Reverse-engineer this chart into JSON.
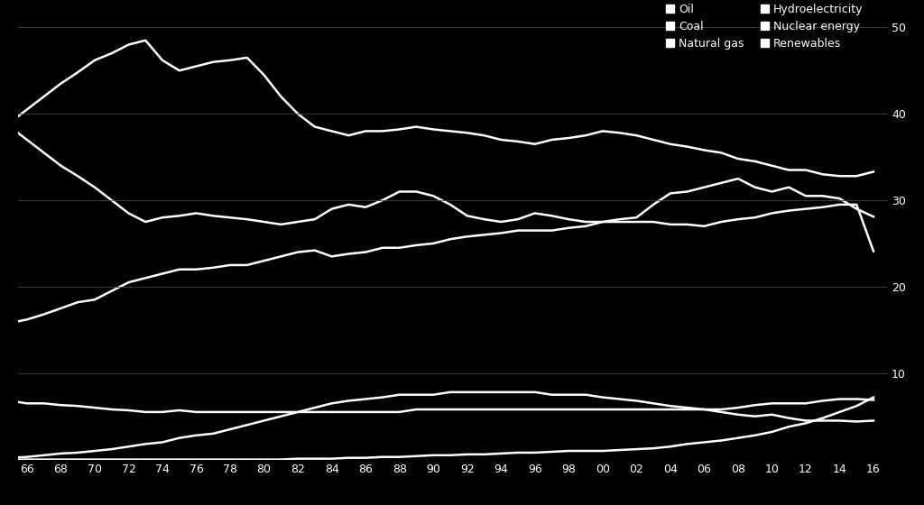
{
  "years": [
    1965,
    1966,
    1967,
    1968,
    1969,
    1970,
    1971,
    1972,
    1973,
    1974,
    1975,
    1976,
    1977,
    1978,
    1979,
    1980,
    1981,
    1982,
    1983,
    1984,
    1985,
    1986,
    1987,
    1988,
    1989,
    1990,
    1991,
    1992,
    1993,
    1994,
    1995,
    1996,
    1997,
    1998,
    1999,
    2000,
    2001,
    2002,
    2003,
    2004,
    2005,
    2006,
    2007,
    2008,
    2009,
    2010,
    2011,
    2012,
    2013,
    2014,
    2015,
    2016
  ],
  "oil": [
    39.0,
    40.5,
    42.0,
    43.5,
    44.8,
    46.2,
    47.0,
    48.0,
    48.5,
    46.2,
    45.0,
    45.5,
    46.0,
    46.2,
    46.5,
    44.5,
    42.0,
    40.0,
    38.5,
    38.0,
    37.5,
    38.0,
    38.0,
    38.2,
    38.5,
    38.2,
    38.0,
    37.8,
    37.5,
    37.0,
    36.8,
    36.5,
    37.0,
    37.2,
    37.5,
    38.0,
    37.8,
    37.5,
    37.0,
    36.5,
    36.2,
    35.8,
    35.5,
    34.8,
    34.5,
    34.0,
    33.5,
    33.5,
    33.0,
    32.8,
    32.8,
    33.3
  ],
  "coal": [
    38.5,
    37.0,
    35.5,
    34.0,
    32.8,
    31.5,
    30.0,
    28.5,
    27.5,
    28.0,
    28.2,
    28.5,
    28.2,
    28.0,
    27.8,
    27.5,
    27.2,
    27.5,
    27.8,
    29.0,
    29.5,
    29.2,
    30.0,
    31.0,
    31.0,
    30.5,
    29.5,
    28.2,
    27.8,
    27.5,
    27.8,
    28.5,
    28.2,
    27.8,
    27.5,
    27.5,
    27.8,
    28.0,
    29.5,
    30.8,
    31.0,
    31.5,
    32.0,
    32.5,
    31.5,
    31.0,
    31.5,
    30.5,
    30.5,
    30.2,
    29.0,
    28.1
  ],
  "natural_gas": [
    15.8,
    16.2,
    16.8,
    17.5,
    18.2,
    18.5,
    19.5,
    20.5,
    21.0,
    21.5,
    22.0,
    22.0,
    22.2,
    22.5,
    22.5,
    23.0,
    23.5,
    24.0,
    24.2,
    23.5,
    23.8,
    24.0,
    24.5,
    24.5,
    24.8,
    25.0,
    25.5,
    25.8,
    26.0,
    26.2,
    26.5,
    26.5,
    26.5,
    26.8,
    27.0,
    27.5,
    27.5,
    27.5,
    27.5,
    27.2,
    27.2,
    27.0,
    27.5,
    27.8,
    28.0,
    28.5,
    28.8,
    29.0,
    29.2,
    29.5,
    29.5,
    24.1
  ],
  "hydroelectricity": [
    6.8,
    6.5,
    6.5,
    6.3,
    6.2,
    6.0,
    5.8,
    5.7,
    5.5,
    5.5,
    5.7,
    5.5,
    5.5,
    5.5,
    5.5,
    5.5,
    5.5,
    5.5,
    5.5,
    5.5,
    5.5,
    5.5,
    5.5,
    5.5,
    5.8,
    5.8,
    5.8,
    5.8,
    5.8,
    5.8,
    5.8,
    5.8,
    5.8,
    5.8,
    5.8,
    5.8,
    5.8,
    5.8,
    5.8,
    5.8,
    5.8,
    5.8,
    5.8,
    6.0,
    6.3,
    6.5,
    6.5,
    6.5,
    6.8,
    7.0,
    7.0,
    6.9
  ],
  "nuclear_energy": [
    0.2,
    0.3,
    0.5,
    0.7,
    0.8,
    1.0,
    1.2,
    1.5,
    1.8,
    2.0,
    2.5,
    2.8,
    3.0,
    3.5,
    4.0,
    4.5,
    5.0,
    5.5,
    6.0,
    6.5,
    6.8,
    7.0,
    7.2,
    7.5,
    7.5,
    7.5,
    7.8,
    7.8,
    7.8,
    7.8,
    7.8,
    7.8,
    7.5,
    7.5,
    7.5,
    7.2,
    7.0,
    6.8,
    6.5,
    6.2,
    6.0,
    5.8,
    5.5,
    5.2,
    5.0,
    5.2,
    4.8,
    4.5,
    4.5,
    4.5,
    4.4,
    4.5
  ],
  "renewables": [
    0.0,
    0.0,
    0.0,
    0.0,
    0.0,
    0.0,
    0.0,
    0.0,
    0.0,
    0.0,
    0.0,
    0.0,
    0.0,
    0.0,
    0.0,
    0.0,
    0.0,
    0.1,
    0.1,
    0.1,
    0.2,
    0.2,
    0.3,
    0.3,
    0.4,
    0.5,
    0.5,
    0.6,
    0.6,
    0.7,
    0.8,
    0.8,
    0.9,
    1.0,
    1.0,
    1.0,
    1.1,
    1.2,
    1.3,
    1.5,
    1.8,
    2.0,
    2.2,
    2.5,
    2.8,
    3.2,
    3.8,
    4.2,
    4.8,
    5.5,
    6.2,
    7.2
  ],
  "background_color": "#000000",
  "line_color": "#ffffff",
  "grid_color": "#444444",
  "text_color": "#ffffff",
  "ylim": [
    0,
    52
  ],
  "yticks": [
    10,
    20,
    30,
    40,
    50
  ],
  "xlabel_ticks": [
    "66",
    "68",
    "70",
    "72",
    "74",
    "76",
    "78",
    "80",
    "82",
    "84",
    "86",
    "88",
    "90",
    "92",
    "94",
    "96",
    "98",
    "00",
    "02",
    "04",
    "06",
    "08",
    "10",
    "12",
    "14",
    "16"
  ],
  "xlabel_years": [
    1966,
    1968,
    1970,
    1972,
    1974,
    1976,
    1978,
    1980,
    1982,
    1984,
    1986,
    1988,
    1990,
    1992,
    1994,
    1996,
    1998,
    2000,
    2002,
    2004,
    2006,
    2008,
    2010,
    2012,
    2014,
    2016
  ],
  "legend_labels": [
    "Oil",
    "Coal",
    "Natural gas",
    "Hydroelectricity",
    "Nuclear energy",
    "Renewables"
  ],
  "line_width": 1.8,
  "tick_fontsize": 9,
  "legend_fontsize": 9
}
